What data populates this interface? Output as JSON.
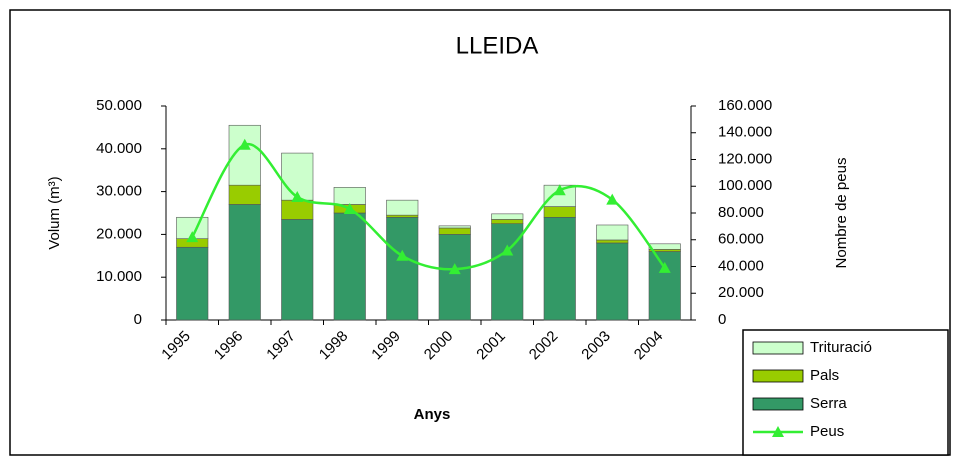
{
  "chart_data": {
    "type": "bar",
    "title": "LLEIDA",
    "x_label": "Anys",
    "y_label": "Volum (m³)",
    "y2_label": "Nombre de peus",
    "categories": [
      "1995",
      "1996",
      "1997",
      "1998",
      "1999",
      "2000",
      "2001",
      "2002",
      "2003",
      "2004"
    ],
    "series": [
      {
        "name": "Serra",
        "type": "bar",
        "color": "#339966",
        "values": [
          17000,
          27000,
          23500,
          25000,
          24000,
          20000,
          22500,
          24000,
          18000,
          16000
        ]
      },
      {
        "name": "Pals",
        "type": "bar",
        "color": "#99cc00",
        "values": [
          2000,
          4500,
          4500,
          2000,
          500,
          1500,
          1000,
          2500,
          700,
          500
        ]
      },
      {
        "name": "Trituració",
        "type": "bar",
        "color": "#ccffcc",
        "values": [
          5000,
          14000,
          11000,
          4000,
          3500,
          500,
          1300,
          5000,
          3500,
          1300
        ]
      },
      {
        "name": "Peus",
        "type": "line",
        "axis": "y2",
        "color": "#33ee33",
        "values": [
          62000,
          131000,
          92000,
          83000,
          48000,
          38000,
          52000,
          97000,
          90000,
          39000
        ]
      }
    ],
    "ylim": [
      0,
      50000
    ],
    "yticks": [
      0,
      {
        "value": 10000,
        "label": "10.000"
      },
      {
        "value": 20000,
        "label": "20.000"
      },
      {
        "value": 30000,
        "label": "30.000"
      },
      {
        "value": 40000,
        "label": "40.000"
      },
      {
        "value": 50000,
        "label": "50.000"
      }
    ],
    "y2lim": [
      0,
      160000
    ],
    "y2ticks": [
      0,
      {
        "value": 20000,
        "label": "20.000"
      },
      {
        "value": 40000,
        "label": "40.000"
      },
      {
        "value": 60000,
        "label": "60.000"
      },
      {
        "value": 80000,
        "label": "80.000"
      },
      {
        "value": 100000,
        "label": "100.000"
      },
      {
        "value": 120000,
        "label": "120.000"
      },
      {
        "value": 140000,
        "label": "140.000"
      },
      {
        "value": 160000,
        "label": "160.000"
      }
    ],
    "grid": false,
    "legend": "lower right"
  }
}
